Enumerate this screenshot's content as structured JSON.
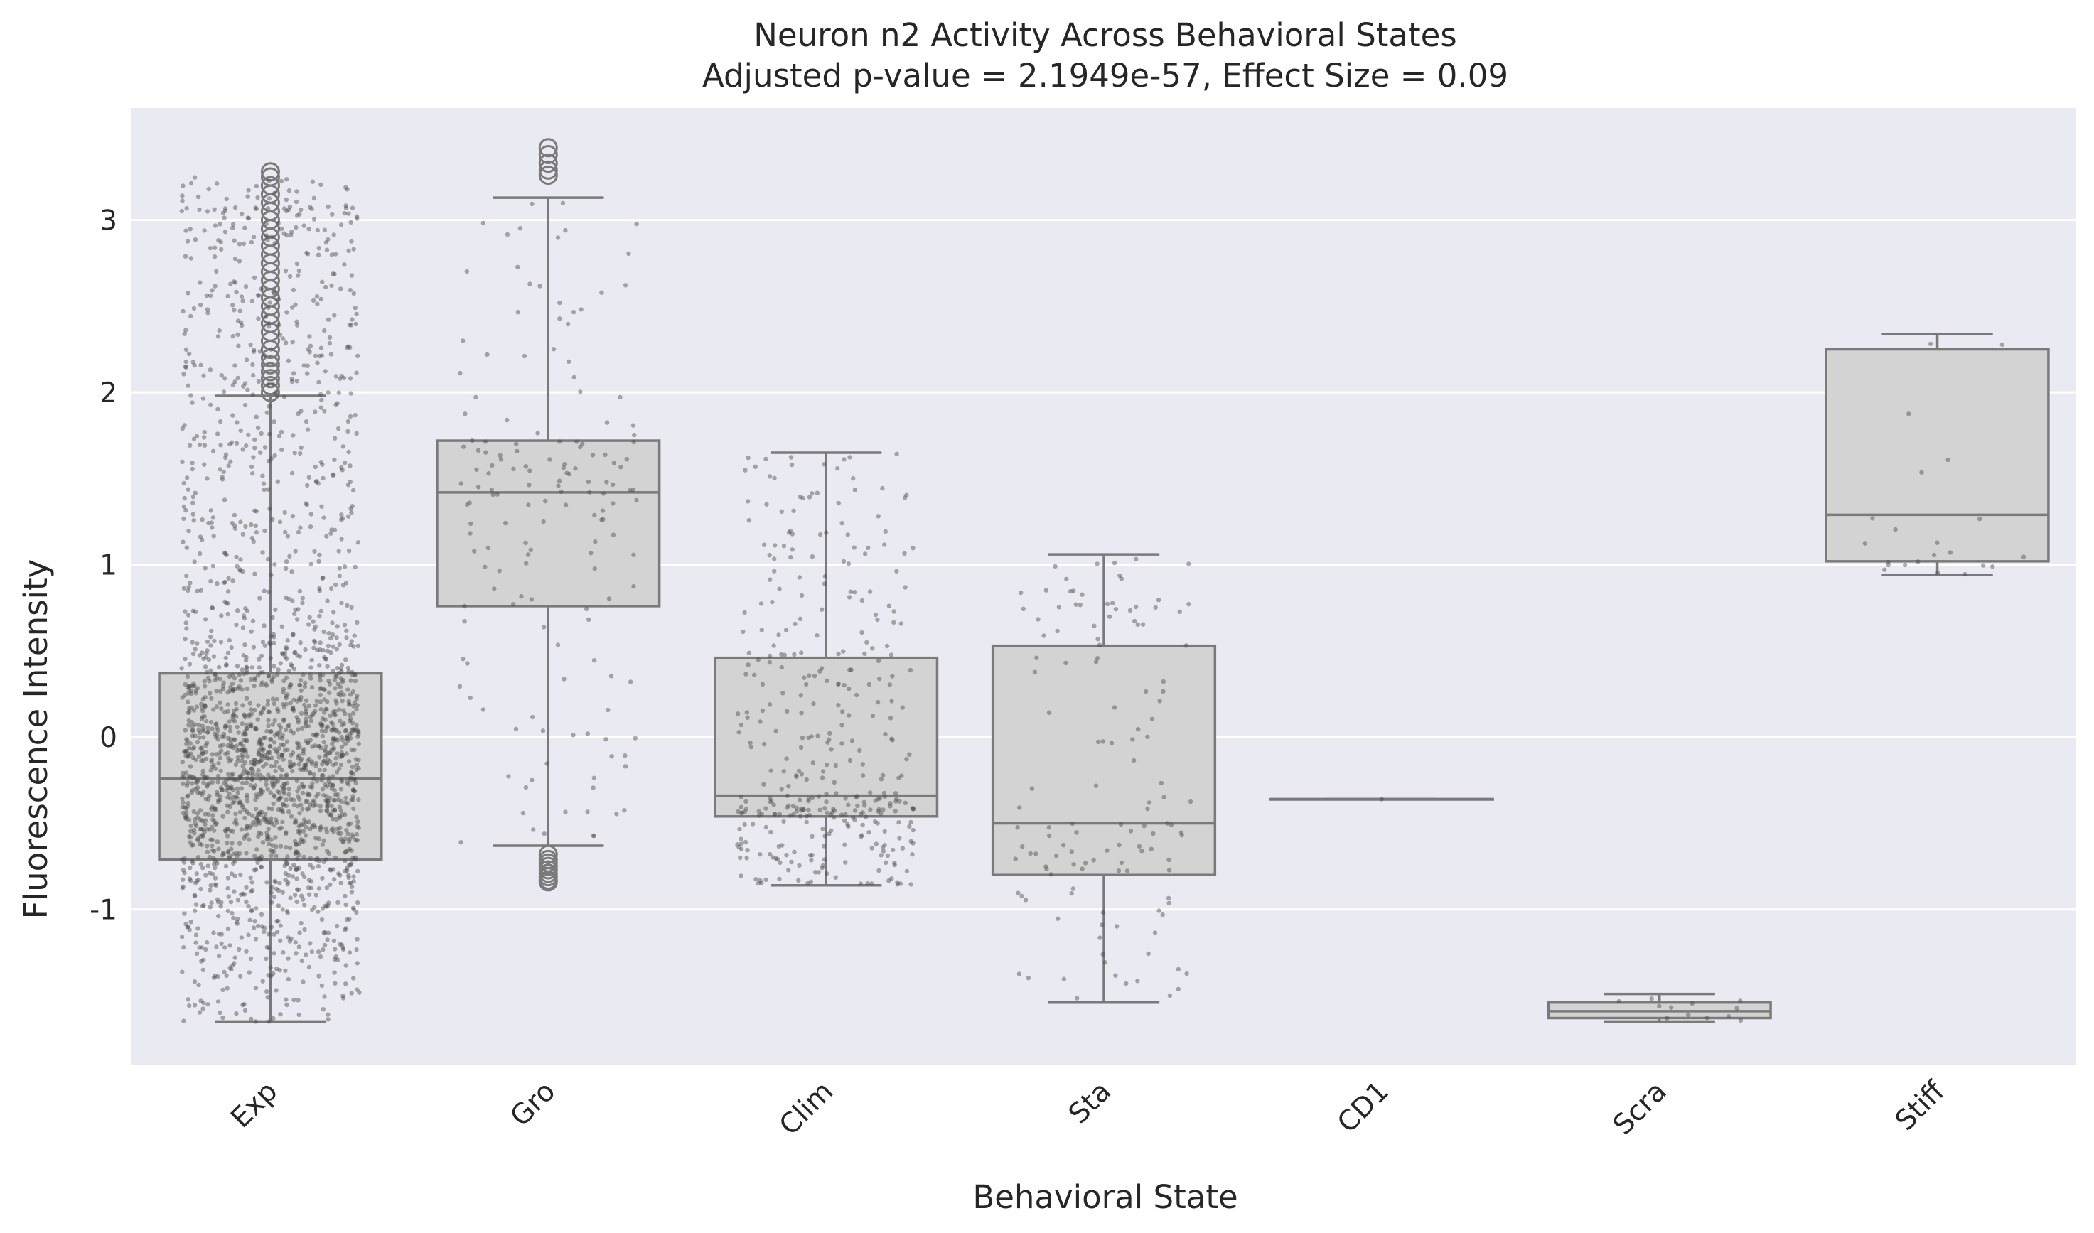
{
  "chart_data": {
    "type": "box",
    "title": "Neuron n2 Activity Across Behavioral States",
    "subtitle": "Adjusted p-value = 2.1949e-57, Effect Size = 0.09",
    "xlabel": "Behavioral State",
    "ylabel": "Fluorescence Intensity",
    "ylim": [
      -1.9,
      3.65
    ],
    "yticks": [
      -1,
      0,
      1,
      2,
      3
    ],
    "yticklabels": [
      "-1",
      "0",
      "1",
      "2",
      "3"
    ],
    "grid": true,
    "background": "#eaeaf2",
    "box_color": "#d3d3d3",
    "line_color": "#7a7a7a",
    "categories": [
      "Exp",
      "Gro",
      "Clim",
      "Sta",
      "CD1",
      "Scra",
      "Stiff"
    ],
    "boxes": [
      {
        "category": "Exp",
        "whisker_low": -1.65,
        "q1": -0.71,
        "median": -0.24,
        "q3": 0.37,
        "whisker_high": 1.98,
        "outliers": [
          2.0,
          2.04,
          2.08,
          2.12,
          2.16,
          2.2,
          2.25,
          2.3,
          2.35,
          2.4,
          2.45,
          2.5,
          2.55,
          2.6,
          2.65,
          2.7,
          2.75,
          2.8,
          2.85,
          2.9,
          2.95,
          3.0,
          3.05,
          3.1,
          3.15,
          3.2,
          3.25,
          3.28
        ],
        "n_points": 2200
      },
      {
        "category": "Gro",
        "whisker_low": -0.63,
        "q1": 0.76,
        "median": 1.42,
        "q3": 1.72,
        "whisker_high": 3.13,
        "outliers": [
          -0.68,
          -0.71,
          -0.73,
          -0.75,
          -0.77,
          -0.79,
          -0.81,
          -0.83,
          -0.84,
          3.26,
          3.29,
          3.33,
          3.38,
          3.42
        ],
        "n_points": 160
      },
      {
        "category": "Clim",
        "whisker_low": -0.86,
        "q1": -0.46,
        "median": -0.34,
        "q3": 0.46,
        "whisker_high": 1.65,
        "outliers": [],
        "n_points": 380
      },
      {
        "category": "Sta",
        "whisker_low": -1.54,
        "q1": -0.8,
        "median": -0.5,
        "q3": 0.53,
        "whisker_high": 1.06,
        "outliers": [],
        "n_points": 130
      },
      {
        "category": "CD1",
        "whisker_low": -0.36,
        "q1": -0.36,
        "median": -0.36,
        "q3": -0.36,
        "whisker_high": -0.36,
        "outliers": [],
        "n_points": 1
      },
      {
        "category": "Scra",
        "whisker_low": -1.65,
        "q1": -1.63,
        "median": -1.59,
        "q3": -1.54,
        "whisker_high": -1.49,
        "outliers": [],
        "n_points": 12
      },
      {
        "category": "Stiff",
        "whisker_low": 0.94,
        "q1": 1.02,
        "median": 1.29,
        "q3": 2.25,
        "whisker_high": 2.34,
        "outliers": [],
        "n_points": 22
      }
    ]
  }
}
